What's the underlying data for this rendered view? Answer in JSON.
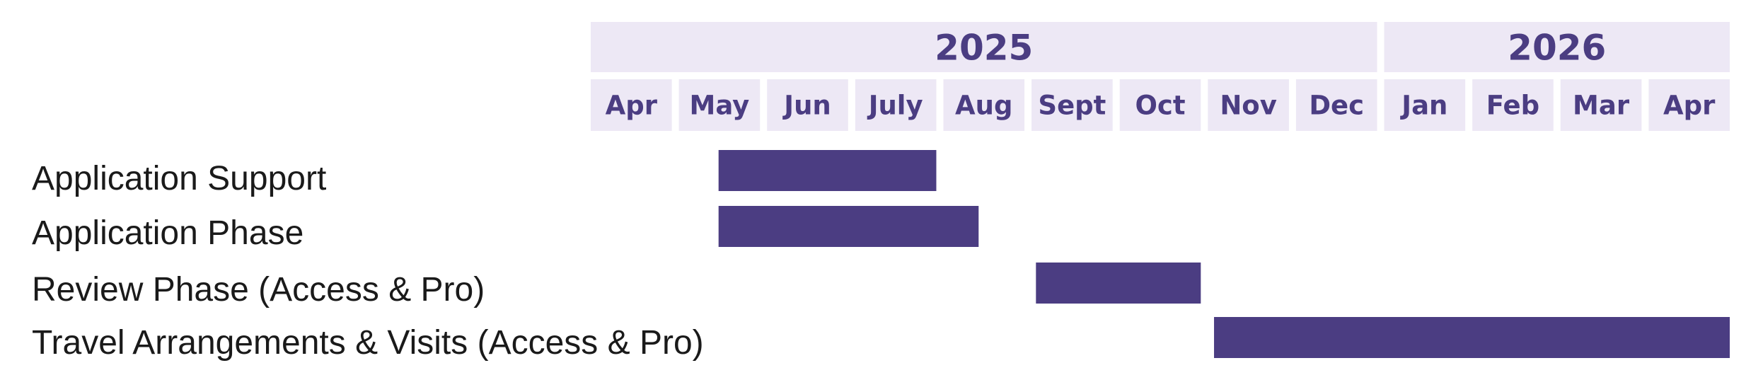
{
  "colors": {
    "header_background": "#ede8f5",
    "header_text": "#4b3d82",
    "bar": "#4b3d82",
    "task_text": "#1a1a1a"
  },
  "chart_data": {
    "type": "gantt",
    "title": "",
    "years": [
      {
        "label": "2025",
        "months": 9
      },
      {
        "label": "2026",
        "months": 4
      }
    ],
    "months": [
      "Apr",
      "May",
      "Jun",
      "July",
      "Aug",
      "Sept",
      "Oct",
      "Nov",
      "Dec",
      "Jan",
      "Feb",
      "Mar",
      "Apr"
    ],
    "tasks": [
      {
        "name": "Application Support",
        "start": 1.45,
        "end": 4.0
      },
      {
        "name": "Application Phase",
        "start": 1.45,
        "end": 4.48
      },
      {
        "name": "Review Phase (Access & Pro)",
        "start": 5.05,
        "end": 7.0
      },
      {
        "name": "Travel Arrangements & Visits (Access & Pro)",
        "start": 7.07,
        "end": 13.0
      }
    ]
  }
}
